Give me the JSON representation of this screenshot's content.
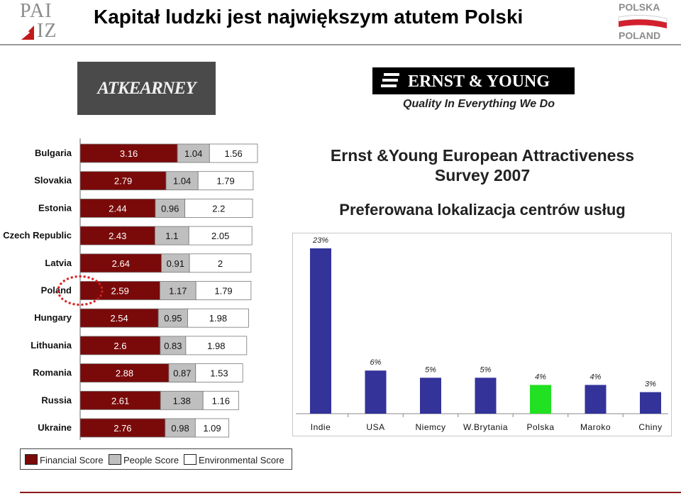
{
  "header": {
    "title": "Kapitał ludzki jest największym atutem Polski",
    "logo_left_lines": [
      "PAI",
      "IZ"
    ],
    "logo_right_lines": [
      "POLSKA",
      "POLAND"
    ]
  },
  "logos": {
    "atkearney": "ATKEARNEY",
    "ey_name": "ERNST & YOUNG",
    "ey_tagline": "Quality In Everything We Do"
  },
  "right_panel": {
    "title": "Ernst &Young European Attractiveness Survey 2007",
    "subtitle": "Preferowana lokalizacja centrów usług"
  },
  "legend": {
    "items": [
      "Financial Score",
      "People Score",
      "Environmental Score"
    ]
  },
  "colors": {
    "financial": "#7a0a0a",
    "people": "#bfbfbf",
    "environmental": "#ffffff",
    "bar_blue": "#33339a",
    "bar_highlight": "#22e022",
    "highlight_circle": "#d42020"
  },
  "chart_data": [
    {
      "type": "bar",
      "orientation": "horizontal",
      "stacked": true,
      "categories": [
        "Bulgaria",
        "Slovakia",
        "Estonia",
        "Czech Republic",
        "Latvia",
        "Poland",
        "Hungary",
        "Lithuania",
        "Romania",
        "Russia",
        "Ukraine"
      ],
      "series": [
        {
          "name": "Financial Score",
          "values": [
            3.16,
            2.79,
            2.44,
            2.43,
            2.64,
            2.59,
            2.54,
            2.6,
            2.88,
            2.61,
            2.76
          ]
        },
        {
          "name": "People Score",
          "values": [
            1.04,
            1.04,
            0.96,
            1.1,
            0.91,
            1.17,
            0.95,
            0.83,
            0.87,
            1.38,
            0.98
          ]
        },
        {
          "name": "Environmental Score",
          "values": [
            1.56,
            1.79,
            2.2,
            2.05,
            2,
            1.79,
            1.98,
            1.98,
            1.53,
            1.16,
            1.09
          ]
        }
      ],
      "value_labels": [
        [
          "3.16",
          "2.79",
          "2.44",
          "2.43",
          "2.64",
          "2.59",
          "2.54",
          "2.6",
          "2.88",
          "2.61",
          "2.76"
        ],
        [
          "1.04",
          "1.04",
          "0.96",
          "1.1",
          "0.91",
          "1.17",
          "0.95",
          "0.83",
          "0.87",
          "1.38",
          "0.98"
        ],
        [
          "1.56",
          "1.79",
          "2.2",
          "2.05",
          "2",
          "1.79",
          "1.98",
          "1.98",
          "1.53",
          "1.16",
          "1.09"
        ]
      ],
      "highlighted_category": "Poland",
      "legend_position": "bottom"
    },
    {
      "type": "bar",
      "categories": [
        "Indie",
        "USA",
        "Niemcy",
        "W.Brytania",
        "Polska",
        "Maroko",
        "Chiny"
      ],
      "values": [
        23,
        6,
        5,
        5,
        4,
        4,
        3
      ],
      "value_labels": [
        "23%",
        "6%",
        "5%",
        "5%",
        "4%",
        "4%",
        "3%"
      ],
      "highlighted_category": "Polska",
      "ylim": [
        0,
        23
      ]
    }
  ]
}
